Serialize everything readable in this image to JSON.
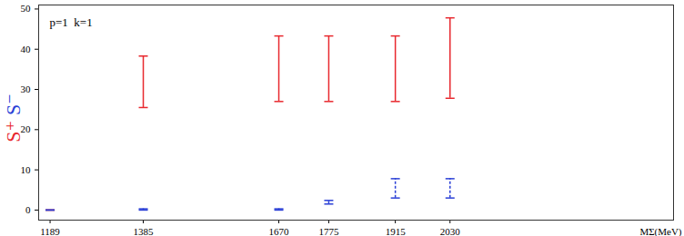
{
  "chart_data": {
    "type": "errorbar",
    "annotation": "p=1  k=1",
    "x_label": "MΣ(MeV)",
    "xlim": [
      1165,
      2500
    ],
    "xticks": [
      1189,
      1385,
      1670,
      1775,
      1915,
      2030
    ],
    "ylim": [
      -2.5,
      51
    ],
    "yticks": [
      0,
      10,
      20,
      30,
      40,
      50
    ],
    "grid": false,
    "x": [
      1189,
      1385,
      1670,
      1775,
      1915,
      2030
    ],
    "series": [
      {
        "name": "S⁺",
        "color": "#e8282e",
        "line_style": "solid",
        "low": [
          0,
          25.5,
          27,
          27,
          27,
          27.8
        ],
        "high": [
          0,
          38.3,
          43.3,
          43.3,
          43.3,
          47.8
        ]
      },
      {
        "name": "S⁻",
        "color": "#2a3fd6",
        "line_style": "dashed",
        "low": [
          0,
          0,
          0,
          1.5,
          3,
          3
        ],
        "high": [
          0,
          0.3,
          0.3,
          2.4,
          7.8,
          7.8
        ]
      }
    ]
  }
}
